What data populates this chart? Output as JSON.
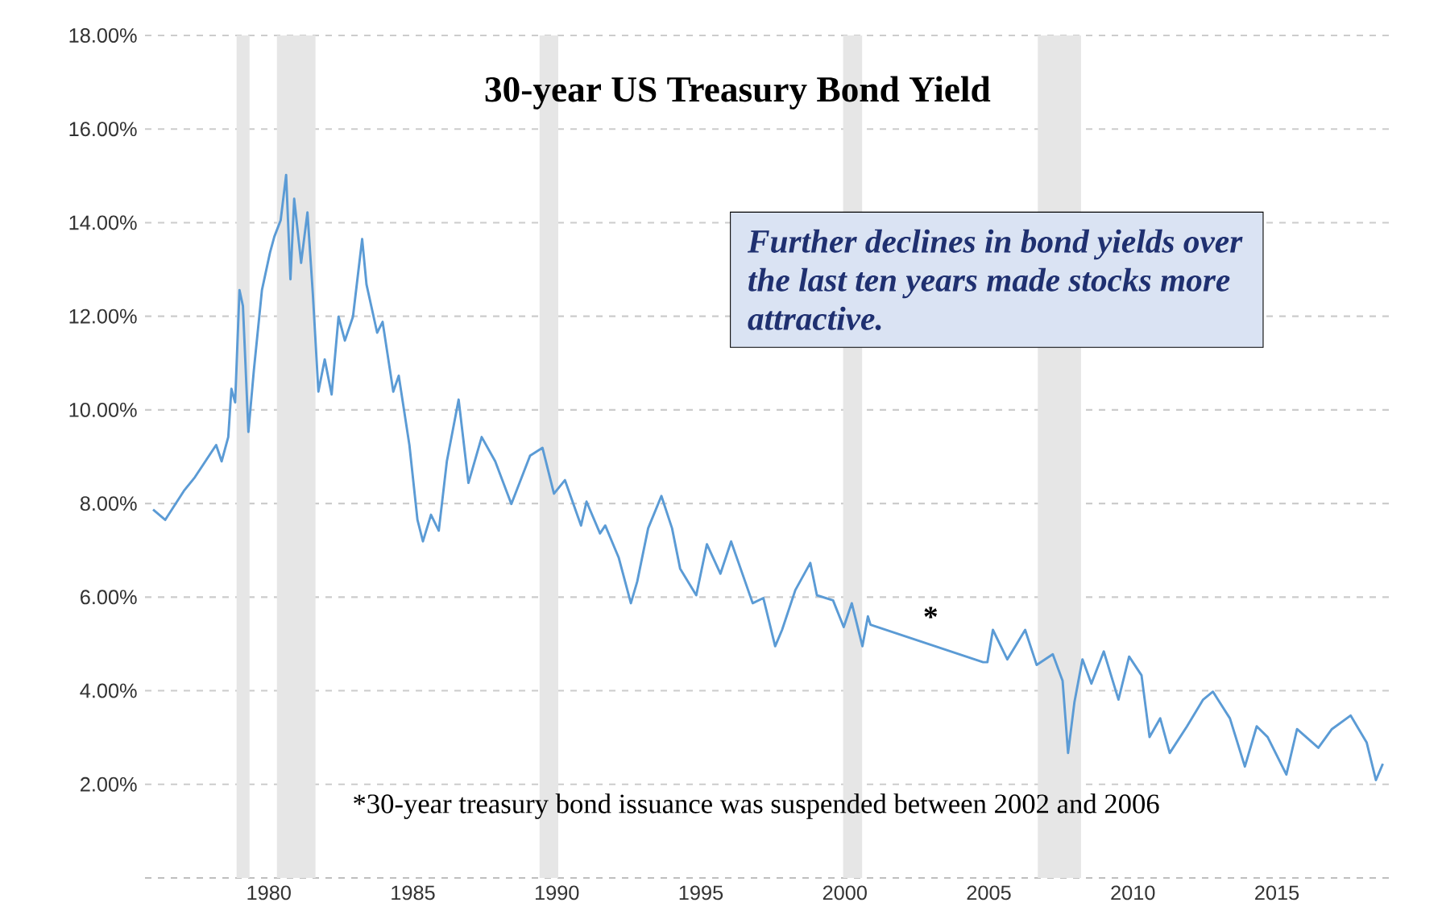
{
  "chart_data": {
    "type": "line",
    "title": "30-year US Treasury Bond Yield",
    "x": [
      1975.98,
      1976.4,
      1977.05,
      1977.43,
      1978.17,
      1978.36,
      1978.59,
      1978.7,
      1978.83,
      1978.98,
      1979.1,
      1979.29,
      1979.48,
      1979.76,
      1980.04,
      1980.19,
      1980.41,
      1980.6,
      1980.75,
      1980.88,
      1981.12,
      1981.34,
      1981.53,
      1981.72,
      1981.94,
      1982.18,
      1982.42,
      1982.64,
      1982.92,
      1983.24,
      1983.39,
      1983.76,
      1983.95,
      1984.32,
      1984.51,
      1984.88,
      1985.16,
      1985.35,
      1985.63,
      1985.9,
      1986.18,
      1986.59,
      1986.93,
      1987.39,
      1987.86,
      1988.42,
      1989.07,
      1989.5,
      1989.9,
      1990.28,
      1990.84,
      1991.03,
      1991.5,
      1991.68,
      1992.15,
      1992.57,
      1992.79,
      1993.17,
      1993.63,
      1994.0,
      1994.28,
      1994.84,
      1995.21,
      1995.68,
      1996.05,
      1996.8,
      1997.17,
      1997.58,
      1997.82,
      1998.28,
      1998.8,
      1999.03,
      1999.59,
      1999.96,
      2000.24,
      2000.61,
      2000.8,
      2000.89,
      2004.8,
      2004.95,
      2005.14,
      2005.64,
      2005.92,
      2006.26,
      2006.66,
      2007.22,
      2007.56,
      2007.75,
      2007.97,
      2008.25,
      2008.56,
      2008.99,
      2009.5,
      2009.87,
      2010.3,
      2010.58,
      2010.95,
      2011.28,
      2011.88,
      2012.44,
      2012.78,
      2013.37,
      2013.89,
      2014.3,
      2014.68,
      2015.33,
      2015.7,
      2016.44,
      2016.91,
      2017.56,
      2018.12,
      2018.44,
      2018.68
    ],
    "values": [
      7.87,
      7.65,
      8.27,
      8.56,
      9.25,
      8.9,
      9.42,
      10.45,
      10.16,
      12.56,
      12.22,
      9.53,
      10.85,
      12.56,
      13.36,
      13.7,
      14.05,
      15.02,
      12.79,
      14.51,
      13.14,
      14.22,
      12.45,
      10.39,
      11.08,
      10.33,
      11.99,
      11.48,
      11.99,
      13.65,
      12.68,
      11.65,
      11.88,
      10.39,
      10.73,
      9.25,
      7.65,
      7.19,
      7.76,
      7.42,
      8.9,
      10.22,
      8.44,
      9.42,
      8.9,
      7.99,
      9.02,
      9.19,
      8.21,
      8.5,
      7.53,
      8.04,
      7.36,
      7.53,
      6.84,
      5.87,
      6.33,
      7.47,
      8.16,
      7.47,
      6.61,
      6.04,
      7.13,
      6.5,
      7.19,
      5.87,
      5.98,
      4.95,
      5.3,
      6.15,
      6.73,
      6.04,
      5.93,
      5.36,
      5.87,
      4.95,
      5.59,
      5.41,
      4.61,
      4.61,
      5.3,
      4.67,
      4.95,
      5.3,
      4.55,
      4.78,
      4.21,
      2.67,
      3.75,
      4.67,
      4.15,
      4.84,
      3.81,
      4.73,
      4.33,
      3.01,
      3.41,
      2.67,
      3.24,
      3.81,
      3.98,
      3.41,
      2.38,
      3.24,
      3.01,
      2.21,
      3.18,
      2.78,
      3.18,
      3.47,
      2.89,
      2.09,
      2.44
    ],
    "color": "#5b9bd5",
    "xlim": [
      1975.7,
      2019.0
    ],
    "ylim": [
      0,
      18
    ],
    "xticks": [
      1980,
      1985,
      1990,
      1995,
      2000,
      2005,
      2010,
      2015
    ],
    "yticks": [
      {
        "value": 0,
        "label": null
      },
      {
        "value": 2,
        "label": "2.00%"
      },
      {
        "value": 4,
        "label": "4.00%"
      },
      {
        "value": 6,
        "label": "6.00%"
      },
      {
        "value": 8,
        "label": "8.00%"
      },
      {
        "value": 10,
        "label": "10.00%"
      },
      {
        "value": 12,
        "label": "12.00%"
      },
      {
        "value": 14,
        "label": "14.00%"
      },
      {
        "value": 16,
        "label": "16.00%"
      },
      {
        "value": 18,
        "label": "18.00%"
      }
    ],
    "grid": "y",
    "marker": "none",
    "line_style": "solid",
    "bands": [
      {
        "axis": "x",
        "from": 1978.88,
        "to": 1979.33,
        "color": "#e6e6e6"
      },
      {
        "axis": "x",
        "from": 1980.28,
        "to": 1981.62,
        "color": "#e6e6e6"
      },
      {
        "axis": "x",
        "from": 1989.4,
        "to": 1990.05,
        "color": "#e6e6e6"
      },
      {
        "axis": "x",
        "from": 1999.94,
        "to": 2000.6,
        "color": "#e6e6e6"
      },
      {
        "axis": "x",
        "from": 2006.7,
        "to": 2008.2,
        "color": "#e6e6e6"
      }
    ],
    "annotations": [
      "Further declines in bond yields over the last ten years made stocks more attractive.",
      "*",
      "*30-year treasury bond issuance was suspended between 2002 and 2006"
    ]
  }
}
